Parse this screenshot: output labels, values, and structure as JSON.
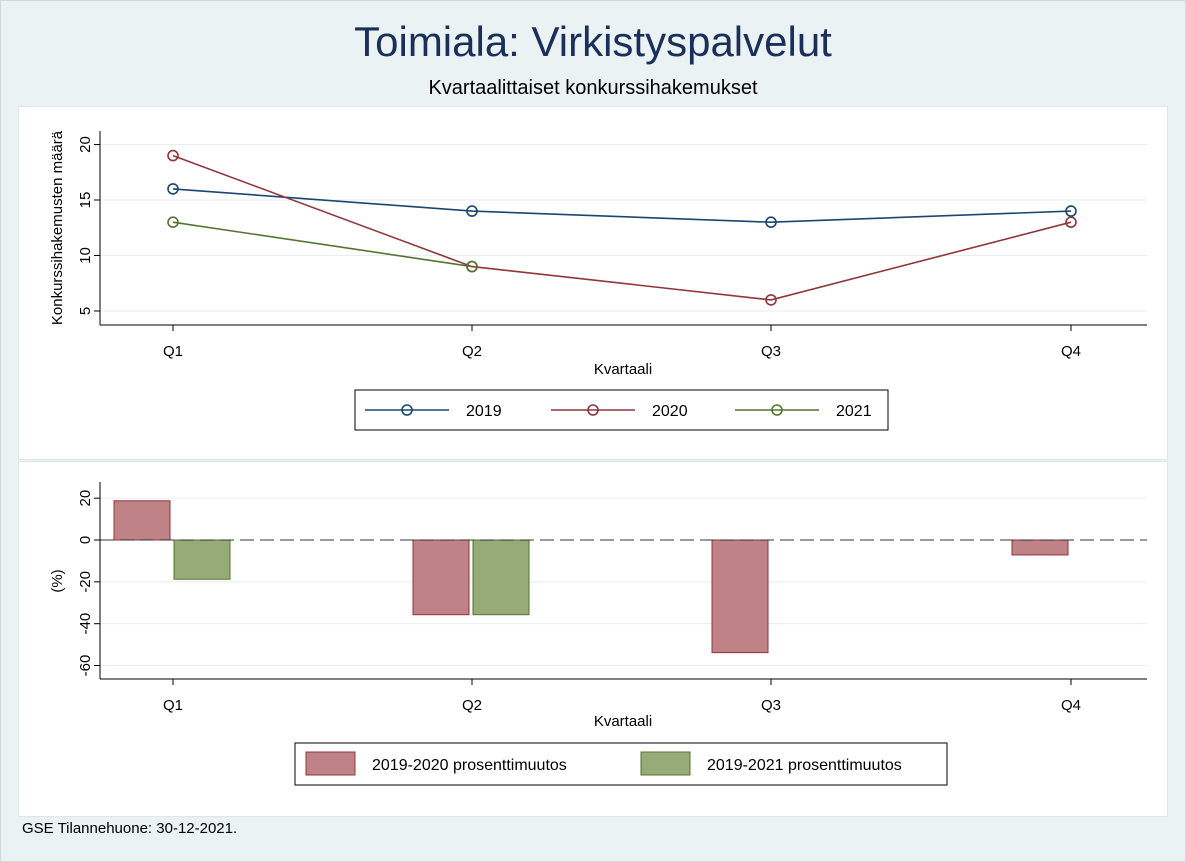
{
  "title": "Toimiala: Virkistyspalvelut",
  "subtitle": "Kvartaalittaiset konkurssihakemukset",
  "footnote": "GSE Tilannehuone: 30-12-2021.",
  "colors": {
    "s2019": "#1a476f",
    "s2020": "#90353b",
    "s2021": "#55752f",
    "bar2020_fill": "#bf8286",
    "bar2021_fill": "#97ab79"
  },
  "chart_data": [
    {
      "type": "line",
      "xlabel": "Kvartaali",
      "ylabel": "Konkurssihakemusten määrä",
      "categories": [
        "Q1",
        "Q2",
        "Q3",
        "Q4"
      ],
      "yticks": [
        "5",
        "10",
        "15",
        "20"
      ],
      "ylim": [
        3.5,
        21.5
      ],
      "grid": true,
      "legend_position": "bottom",
      "series": [
        {
          "name": "2019",
          "values": [
            16,
            14,
            13,
            14
          ]
        },
        {
          "name": "2020",
          "values": [
            19,
            9,
            6,
            13
          ]
        },
        {
          "name": "2021",
          "values": [
            13,
            9,
            null,
            null
          ]
        }
      ]
    },
    {
      "type": "bar",
      "xlabel": "Kvartaali",
      "ylabel": "(%)",
      "categories": [
        "Q1",
        "Q2",
        "Q3",
        "Q4"
      ],
      "yticks": [
        "20",
        "0",
        "-20",
        "-40",
        "-60"
      ],
      "ylim": [
        -67,
        27
      ],
      "grid": true,
      "reference_line": 0,
      "legend_position": "bottom",
      "series": [
        {
          "name": "2019-2020 prosenttimuutos",
          "values": [
            18.75,
            -35.71,
            -53.85,
            -7.14
          ]
        },
        {
          "name": "2019-2021 prosenttimuutos",
          "values": [
            -18.75,
            -35.71,
            null,
            null
          ]
        }
      ]
    }
  ]
}
